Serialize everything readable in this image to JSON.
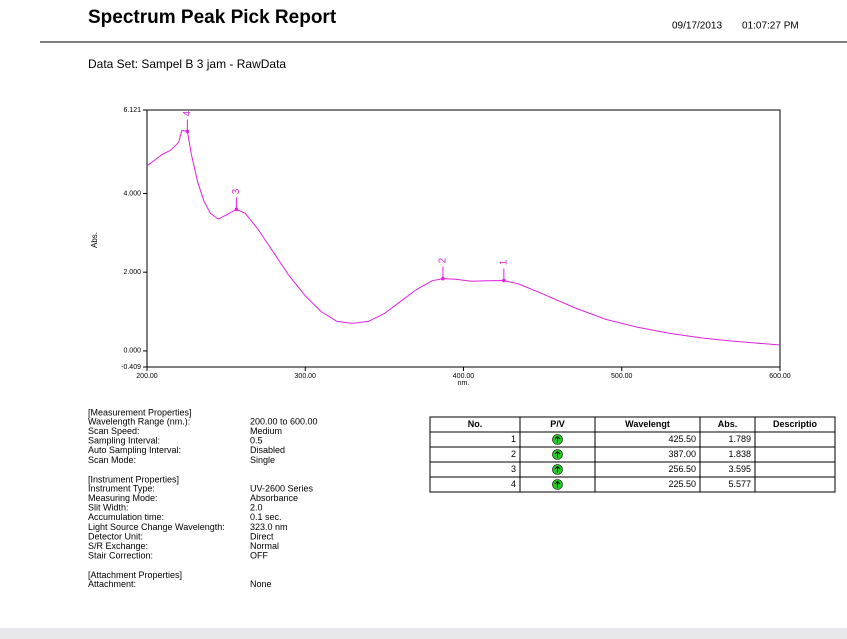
{
  "header": {
    "title": "Spectrum Peak Pick Report",
    "date": "09/17/2013",
    "time": "01:07:27 PM",
    "data_set": "Data Set: Sampel B 3 jam - RawData"
  },
  "chart_data": {
    "type": "line",
    "xlabel": "nm.",
    "ylabel": "Abs.",
    "color": "#e020e0",
    "x": [
      200,
      205,
      210,
      215,
      220,
      222,
      225.5,
      228,
      232,
      236,
      240,
      245,
      250,
      256.5,
      262,
      270,
      280,
      290,
      300,
      310,
      320,
      330,
      340,
      350,
      360,
      370,
      380,
      387,
      395,
      405,
      415,
      425.5,
      435,
      450,
      470,
      490,
      510,
      530,
      550,
      570,
      600
    ],
    "values": [
      4.7,
      4.85,
      5.0,
      5.1,
      5.3,
      5.6,
      5.577,
      5.0,
      4.3,
      3.8,
      3.5,
      3.35,
      3.45,
      3.595,
      3.5,
      3.1,
      2.5,
      1.9,
      1.4,
      1.0,
      0.75,
      0.7,
      0.75,
      0.95,
      1.25,
      1.55,
      1.78,
      1.838,
      1.82,
      1.77,
      1.78,
      1.789,
      1.7,
      1.45,
      1.1,
      0.8,
      0.6,
      0.45,
      0.33,
      0.25,
      0.15
    ],
    "xlim": [
      200,
      600
    ],
    "xticks": [
      {
        "value": 200,
        "label": "200.00"
      },
      {
        "value": 300,
        "label": "300.00"
      },
      {
        "value": 400,
        "label": "400.00"
      },
      {
        "value": 500,
        "label": "500.00"
      },
      {
        "value": 600,
        "label": "600.00"
      }
    ],
    "ylim": [
      -0.409,
      6.121
    ],
    "yticks": [
      {
        "value": -0.409,
        "label": "-0.409"
      },
      {
        "value": 0,
        "label": "0.000"
      },
      {
        "value": 2,
        "label": "2.000"
      },
      {
        "value": 4,
        "label": "4.000"
      },
      {
        "value": 6.121,
        "label": "6.121"
      }
    ],
    "peaks": [
      {
        "label": "1",
        "x": 425.5,
        "y": 1.789
      },
      {
        "label": "2",
        "x": 387,
        "y": 1.838
      },
      {
        "label": "3",
        "x": 256.5,
        "y": 3.595
      },
      {
        "label": "4",
        "x": 225.5,
        "y": 5.577
      }
    ]
  },
  "properties": [
    {
      "heading": "[Measurement Properties]",
      "items": [
        [
          "Wavelength Range (nm.):",
          "200.00 to 600.00"
        ],
        [
          "Scan Speed:",
          "Medium"
        ],
        [
          "Sampling Interval:",
          "0.5"
        ],
        [
          "Auto Sampling Interval:",
          "Disabled"
        ],
        [
          "Scan Mode:",
          "Single"
        ]
      ]
    },
    {
      "heading": "[Instrument Properties]",
      "items": [
        [
          "Instrument Type:",
          "UV-2600 Series"
        ],
        [
          "Measuring Mode:",
          "Absorbance"
        ],
        [
          "Slit Width:",
          "2.0"
        ],
        [
          "Accumulation time:",
          "0.1 sec."
        ],
        [
          "Light Source Change Wavelength:",
          "323.0 nm"
        ],
        [
          "Detector Unit:",
          "Direct"
        ],
        [
          "S/R Exchange:",
          "Normal"
        ],
        [
          "Stair Correction:",
          "OFF"
        ]
      ]
    },
    {
      "heading": "[Attachment Properties]",
      "items": [
        [
          "Attachment:",
          "None"
        ]
      ]
    }
  ],
  "table": {
    "headers": [
      "No.",
      "P/V",
      "Wavelengt",
      "Abs.",
      "Descriptio"
    ],
    "rows": [
      [
        "1",
        "425.50",
        "1.789"
      ],
      [
        "2",
        "387.00",
        "1.838"
      ],
      [
        "3",
        "256.50",
        "3.595"
      ],
      [
        "4",
        "225.50",
        "5.577"
      ]
    ]
  }
}
